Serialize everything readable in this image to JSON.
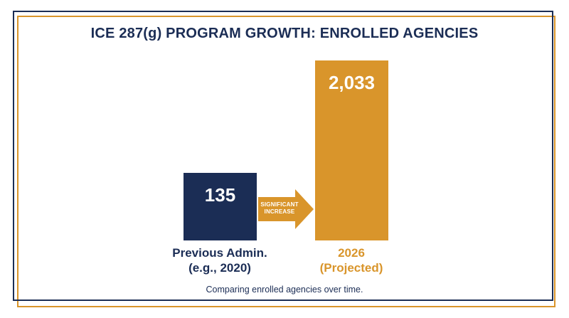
{
  "chart_data": {
    "type": "bar",
    "title": "ICE 287(g) PROGRAM GROWTH: ENROLLED AGENCIES",
    "categories": [
      "Previous Admin.\n(e.g., 2020)",
      "2026\n(Projected)"
    ],
    "series": [
      {
        "values": [
          135,
          2033
        ]
      }
    ],
    "value_labels": [
      "135",
      "2,033"
    ],
    "bar_colors": [
      "#1b2d55",
      "#d9952b"
    ],
    "annotation": "SIGNIFICANT\nINCREASE",
    "caption": "Comparing enrolled agencies over time.",
    "grid": false,
    "legend": "none"
  },
  "colors": {
    "navy": "#1b2d55",
    "gold": "#d9952b",
    "background": "#ffffff"
  }
}
